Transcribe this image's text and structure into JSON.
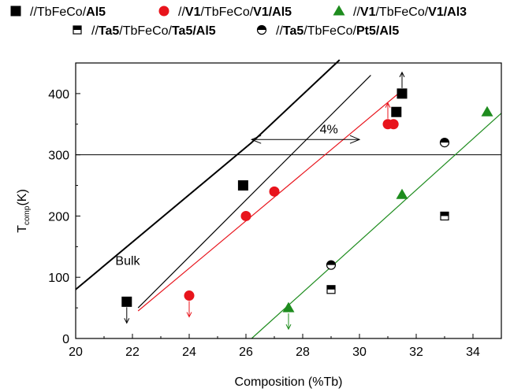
{
  "chart_data": {
    "type": "scatter",
    "xlabel": "Composition (%Tb)",
    "ylabel": "T",
    "ylabel_sub": "comp",
    "ylabel_unit": "(K)",
    "xlim": [
      20,
      35
    ],
    "ylim": [
      0,
      450
    ],
    "xticks": [
      20,
      22,
      24,
      26,
      28,
      30,
      32,
      34
    ],
    "yticks": [
      0,
      100,
      200,
      300,
      400
    ],
    "grid": false,
    "legend_position": "top",
    "reference_line_y": 300,
    "series": [
      {
        "legend": [
          {
            "t": "//TbFeCo/",
            "b": false
          },
          {
            "t": "Al5",
            "b": true
          }
        ],
        "marker": "square-filled",
        "color": "#000000",
        "points": [
          [
            21.8,
            60,
            "down"
          ],
          [
            25.9,
            250,
            ""
          ],
          [
            31.3,
            370,
            ""
          ],
          [
            31.5,
            400,
            "up"
          ]
        ]
      },
      {
        "legend": [
          {
            "t": "//",
            "b": false
          },
          {
            "t": "V1",
            "b": true
          },
          {
            "t": "/TbFeCo/",
            "b": false
          },
          {
            "t": "V1/Al5",
            "b": true
          }
        ],
        "marker": "circle-filled",
        "color": "#e8141c",
        "points": [
          [
            24,
            70,
            "down"
          ],
          [
            26,
            200,
            ""
          ],
          [
            27,
            240,
            ""
          ],
          [
            31,
            350,
            "up"
          ],
          [
            31.2,
            350,
            ""
          ]
        ]
      },
      {
        "legend": [
          {
            "t": "//",
            "b": false
          },
          {
            "t": "V1",
            "b": true
          },
          {
            "t": "/TbFeCo/",
            "b": false
          },
          {
            "t": "V1/Al3",
            "b": true
          }
        ],
        "marker": "triangle-filled",
        "color": "#1e8c1e",
        "points": [
          [
            27.5,
            50,
            "down"
          ],
          [
            31.5,
            235,
            ""
          ],
          [
            34.5,
            370,
            ""
          ]
        ]
      },
      {
        "legend": [
          {
            "t": "//",
            "b": false
          },
          {
            "t": "Ta5",
            "b": true
          },
          {
            "t": "/TbFeCo/",
            "b": false
          },
          {
            "t": "Ta5/Al5",
            "b": true
          }
        ],
        "marker": "square-half",
        "color": "#000000",
        "points": [
          [
            29,
            80,
            ""
          ],
          [
            33,
            200,
            ""
          ]
        ]
      },
      {
        "legend": [
          {
            "t": "//",
            "b": false
          },
          {
            "t": "Ta5",
            "b": true
          },
          {
            "t": "/TbFeCo/",
            "b": false
          },
          {
            "t": "Pt5/Al5",
            "b": true
          }
        ],
        "marker": "circle-half",
        "color": "#000000",
        "points": [
          [
            29,
            120,
            ""
          ],
          [
            33,
            320,
            ""
          ]
        ]
      }
    ],
    "fit_lines": [
      {
        "color": "#000000",
        "points": [
          [
            20,
            80
          ],
          [
            26.2,
            320
          ],
          [
            29.3,
            455
          ]
        ],
        "width": 2.0
      },
      {
        "color": "#000000",
        "points": [
          [
            22.2,
            50
          ],
          [
            30.4,
            430
          ]
        ],
        "width": 1.2
      },
      {
        "color": "#e8141c",
        "points": [
          [
            22.2,
            45
          ],
          [
            31.5,
            405
          ]
        ],
        "width": 1.2
      },
      {
        "color": "#1e8c1e",
        "points": [
          [
            26.2,
            0
          ],
          [
            35,
            368
          ]
        ],
        "width": 1.2
      }
    ],
    "annotations": [
      {
        "text": "Bulk",
        "x": 21.4,
        "y": 120
      },
      {
        "text": "4%",
        "x": 28.6,
        "y": 335
      }
    ],
    "bracket": {
      "x1": 26.2,
      "x2": 30,
      "y": 325
    }
  }
}
